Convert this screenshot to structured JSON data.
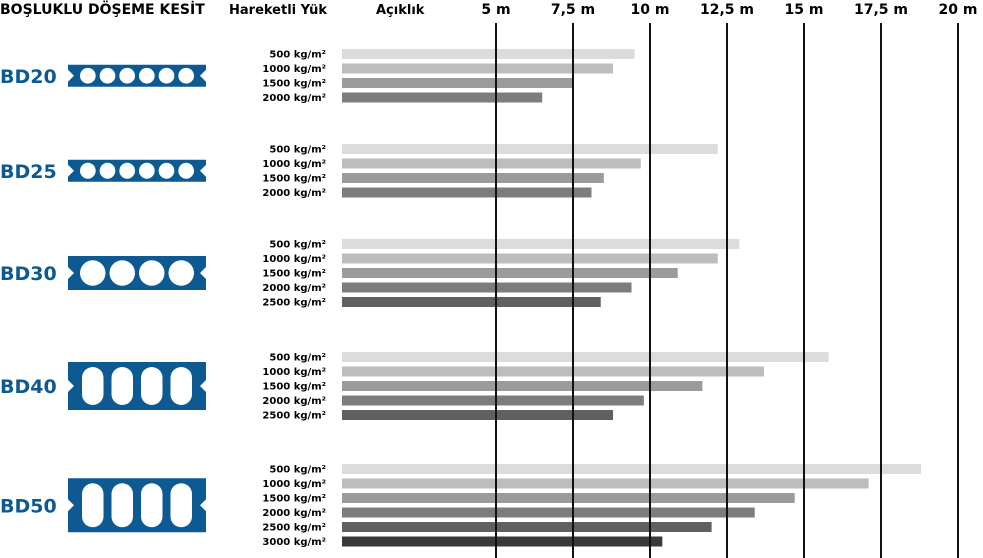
{
  "header": {
    "section_title": "BOŞLUKLU DÖŞEME KESİT",
    "load_title": "Hareketli Yük",
    "span_title": "Açıklık"
  },
  "colors": {
    "brand_blue": "#0d5a92",
    "bar_shades": [
      "#dcdcdc",
      "#bdbdbd",
      "#9b9b9b",
      "#7d7d7d",
      "#606060",
      "#3a3a3a"
    ],
    "gridline": "#111111"
  },
  "chart_data": {
    "type": "bar",
    "orientation": "horizontal",
    "x_unit": "m",
    "xlim": [
      0,
      20
    ],
    "xticks": [
      5,
      7.5,
      10,
      12.5,
      15,
      17.5,
      20
    ],
    "xtick_labels": [
      "5 m",
      "7,5 m",
      "10 m",
      "12,5 m",
      "15 m",
      "17,5 m",
      "20 m"
    ],
    "grid": "vertical lines at ticks",
    "groups": [
      {
        "name": "BD20",
        "voids": 6,
        "void_shape": "circle",
        "bars": [
          {
            "label": "500 kg/m²",
            "value": 9.5
          },
          {
            "label": "1000 kg/m²",
            "value": 8.8
          },
          {
            "label": "1500 kg/m²",
            "value": 7.5
          },
          {
            "label": "2000 kg/m²",
            "value": 6.5
          }
        ]
      },
      {
        "name": "BD25",
        "voids": 6,
        "void_shape": "oval",
        "bars": [
          {
            "label": "500 kg/m²",
            "value": 12.2
          },
          {
            "label": "1000 kg/m²",
            "value": 9.7
          },
          {
            "label": "1500 kg/m²",
            "value": 8.5
          },
          {
            "label": "2000 kg/m²",
            "value": 8.1
          }
        ]
      },
      {
        "name": "BD30",
        "voids": 4,
        "void_shape": "circle",
        "bars": [
          {
            "label": "500 kg/m²",
            "value": 12.9
          },
          {
            "label": "1000 kg/m²",
            "value": 12.2
          },
          {
            "label": "1500 kg/m²",
            "value": 10.9
          },
          {
            "label": "2000 kg/m²",
            "value": 9.4
          },
          {
            "label": "2500 kg/m²",
            "value": 8.4
          }
        ]
      },
      {
        "name": "BD40",
        "voids": 4,
        "void_shape": "slot",
        "bars": [
          {
            "label": "500 kg/m²",
            "value": 15.8
          },
          {
            "label": "1000 kg/m²",
            "value": 13.7
          },
          {
            "label": "1500 kg/m²",
            "value": 11.7
          },
          {
            "label": "2000 kg/m²",
            "value": 9.8
          },
          {
            "label": "2500 kg/m²",
            "value": 8.8
          }
        ]
      },
      {
        "name": "BD50",
        "voids": 4,
        "void_shape": "slot",
        "bars": [
          {
            "label": "500 kg/m²",
            "value": 18.8
          },
          {
            "label": "1000 kg/m²",
            "value": 17.1
          },
          {
            "label": "1500 kg/m²",
            "value": 14.7
          },
          {
            "label": "2000 kg/m²",
            "value": 13.4
          },
          {
            "label": "2500 kg/m²",
            "value": 12.0
          },
          {
            "label": "3000 kg/m²",
            "value": 10.4
          }
        ]
      }
    ]
  }
}
